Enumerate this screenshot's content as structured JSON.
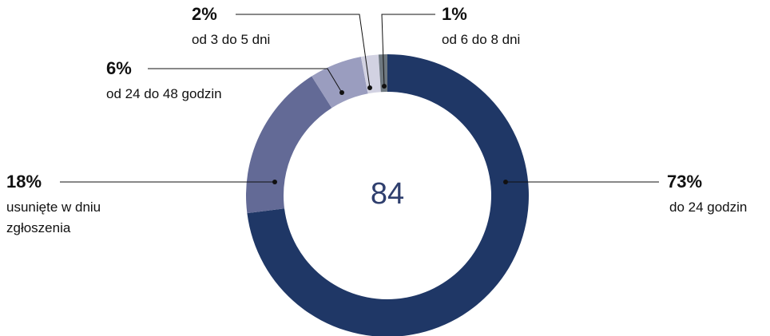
{
  "chart_data": {
    "type": "donut",
    "categories": [
      "do 24 godzin",
      "usunięte w dniu zgłoszenia",
      "od 24 do 48 godzin",
      "od 3 do 5 dni",
      "od 6 do 8 dni"
    ],
    "values": [
      73,
      18,
      6,
      2,
      1
    ],
    "value_labels": [
      "73%",
      "18%",
      "6%",
      "2%",
      "1%"
    ],
    "colors": [
      "#1f3766",
      "#636a96",
      "#9a9dbf",
      "#d2d2e2",
      "#6e7880"
    ],
    "center_label": "84"
  }
}
